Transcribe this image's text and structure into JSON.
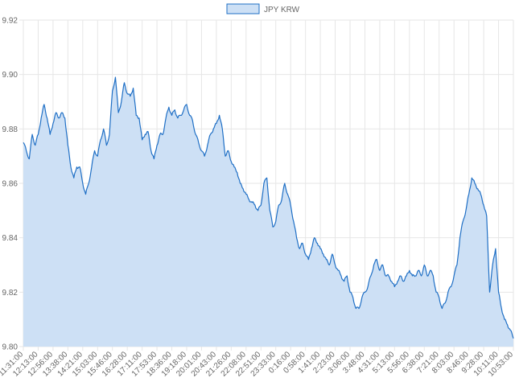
{
  "chart_data": {
    "type": "area",
    "legend": {
      "position": "top-center"
    },
    "grid": true,
    "ylim": [
      9.8,
      9.92
    ],
    "y_ticks": [
      "9.92",
      "9.90",
      "9.88",
      "9.86",
      "9.84",
      "9.82",
      "9.80"
    ],
    "x_tick_labels": [
      "11:31:00",
      "12:13:00",
      "12:56:00",
      "13:38:00",
      "14:21:00",
      "15:03:00",
      "15:46:00",
      "16:28:00",
      "17:11:00",
      "17:53:00",
      "18:36:00",
      "19:18:00",
      "20:01:00",
      "20:43:00",
      "21:26:00",
      "22:08:00",
      "22:51:00",
      "23:33:00",
      "0:16:00",
      "0:58:00",
      "1:41:00",
      "2:23:00",
      "3:06:00",
      "3:48:00",
      "4:31:00",
      "5:13:00",
      "5:56:00",
      "6:38:00",
      "7:21:00",
      "8:03:00",
      "8:46:00",
      "9:28:00",
      "10:11:00",
      "10:53:00"
    ],
    "colors": {
      "line": "#1f6fc5",
      "fill": "#cde0f5",
      "grid": "#e6e6e6"
    },
    "series": [
      {
        "name": "JPY KRW",
        "values": [
          9.875,
          9.872,
          9.869,
          9.878,
          9.874,
          9.878,
          9.884,
          9.889,
          9.884,
          9.878,
          9.882,
          9.886,
          9.884,
          9.886,
          9.884,
          9.874,
          9.866,
          9.862,
          9.866,
          9.866,
          9.86,
          9.856,
          9.86,
          9.866,
          9.872,
          9.87,
          9.876,
          9.88,
          9.874,
          9.878,
          9.894,
          9.899,
          9.886,
          9.89,
          9.897,
          9.893,
          9.892,
          9.895,
          9.885,
          9.884,
          9.876,
          9.878,
          9.879,
          9.872,
          9.869,
          9.874,
          9.878,
          9.878,
          9.884,
          9.888,
          9.885,
          9.887,
          9.884,
          9.885,
          9.887,
          9.889,
          9.885,
          9.883,
          9.878,
          9.875,
          9.872,
          9.87,
          9.874,
          9.878,
          9.88,
          9.882,
          9.885,
          9.88,
          9.87,
          9.872,
          9.868,
          9.866,
          9.864,
          9.86,
          9.858,
          9.856,
          9.854,
          9.853,
          9.852,
          9.85,
          9.852,
          9.86,
          9.862,
          9.85,
          9.844,
          9.846,
          9.852,
          9.854,
          9.86,
          9.856,
          9.852,
          9.846,
          9.84,
          9.836,
          9.838,
          9.834,
          9.832,
          9.836,
          9.84,
          9.838,
          9.836,
          9.834,
          9.832,
          9.83,
          9.834,
          9.83,
          9.828,
          9.826,
          9.824,
          9.826,
          9.82,
          9.818,
          9.814,
          9.814,
          9.818,
          9.82,
          9.822,
          9.826,
          9.83,
          9.832,
          9.828,
          9.83,
          9.826,
          9.826,
          9.824,
          9.822,
          9.824,
          9.826,
          9.824,
          9.826,
          9.828,
          9.826,
          9.826,
          9.828,
          9.826,
          9.83,
          9.826,
          9.828,
          9.826,
          9.82,
          9.818,
          9.814,
          9.816,
          9.82,
          9.822,
          9.826,
          9.83,
          9.84,
          9.846,
          9.85,
          9.856,
          9.862,
          9.86,
          9.858,
          9.856,
          9.852,
          9.848,
          9.82,
          9.83,
          9.836,
          9.82,
          9.814,
          9.81,
          9.808,
          9.806,
          9.803
        ]
      }
    ]
  }
}
